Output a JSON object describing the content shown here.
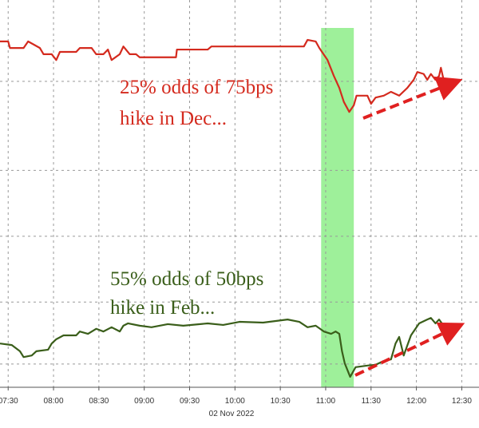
{
  "chart_data": {
    "type": "line",
    "annotations": [
      "25% odds of 75bps",
      "hike in Dec...",
      "55% odds of 50bps",
      "hike in Feb..."
    ],
    "x_label": "02 Nov 2022",
    "xlim": [
      7.41,
      12.69
    ],
    "ylim": [
      0,
      100
    ],
    "xticks": [
      {
        "value": 7.5,
        "label": "07:30"
      },
      {
        "value": 8,
        "label": "08:00"
      },
      {
        "value": 8.5,
        "label": "08:30"
      },
      {
        "value": 9,
        "label": "09:00"
      },
      {
        "value": 9.5,
        "label": "09:30"
      },
      {
        "value": 10,
        "label": "10:00"
      },
      {
        "value": 10.5,
        "label": "10:30"
      },
      {
        "value": 11,
        "label": "11:00"
      },
      {
        "value": 11.5,
        "label": "11:30"
      },
      {
        "value": 12,
        "label": "12:00"
      },
      {
        "value": 12.5,
        "label": "12:30"
      }
    ],
    "ygrid": [
      79,
      56,
      39,
      22,
      6
    ],
    "highlight": [
      10.95,
      11.31
    ],
    "highlight_color": "#9ef09a",
    "series": [
      {
        "color": "#d42a1e",
        "x": [
          7.41,
          7.5,
          7.52,
          7.67,
          7.72,
          7.85,
          7.89,
          7.98,
          8.03,
          8.07,
          8.25,
          8.29,
          8.42,
          8.47,
          8.55,
          8.6,
          8.64,
          8.73,
          8.77,
          8.84,
          8.91,
          8.95,
          9.35,
          9.36,
          9.7,
          9.74,
          10.76,
          10.8,
          10.89,
          10.93,
          11.02,
          11.09,
          11.15,
          11.2,
          11.26,
          11.31,
          11.34,
          11.46,
          11.5,
          11.55,
          11.64,
          11.72,
          11.81,
          11.9,
          11.97,
          12.01,
          12.08,
          12.12,
          12.16,
          12.21,
          12.25,
          12.27,
          12.3
        ],
        "values": [
          89.3,
          89.3,
          87.6,
          87.6,
          89.3,
          87.6,
          86.0,
          86.0,
          84.5,
          86.6,
          86.6,
          87.6,
          87.6,
          86.0,
          86.0,
          87.2,
          84.5,
          86.0,
          88.0,
          86.0,
          86.0,
          85.2,
          85.2,
          87.2,
          87.2,
          88.0,
          88.0,
          89.7,
          89.3,
          87.6,
          84.5,
          80.4,
          77.3,
          73.7,
          71.1,
          72.8,
          75.3,
          75.3,
          73.2,
          74.8,
          75.3,
          76.3,
          75.3,
          77.3,
          79.4,
          81.4,
          80.9,
          79.4,
          80.9,
          79.4,
          80.4,
          82.5,
          79.4
        ]
      },
      {
        "color": "#3a5e1a",
        "x": [
          7.41,
          7.54,
          7.63,
          7.67,
          7.76,
          7.81,
          7.94,
          7.98,
          8.03,
          8.11,
          8.25,
          8.29,
          8.38,
          8.47,
          8.55,
          8.64,
          8.73,
          8.77,
          8.82,
          8.95,
          9.08,
          9.26,
          9.43,
          9.7,
          9.87,
          10.05,
          10.31,
          10.58,
          10.71,
          10.8,
          10.89,
          10.98,
          11.06,
          11.11,
          11.15,
          11.18,
          11.21,
          11.27,
          11.33,
          11.46,
          11.55,
          11.64,
          11.72,
          11.77,
          11.81,
          11.86,
          11.94,
          12.03,
          12.12,
          12.16,
          12.21,
          12.25,
          12.3
        ],
        "values": [
          11.3,
          10.9,
          9.3,
          7.8,
          8.2,
          9.3,
          9.7,
          11.3,
          12.4,
          13.4,
          13.4,
          14.4,
          13.8,
          15.1,
          14.4,
          15.5,
          14.4,
          15.9,
          16.5,
          15.9,
          15.5,
          16.3,
          15.9,
          16.5,
          16.1,
          16.9,
          16.7,
          17.5,
          16.9,
          15.5,
          15.9,
          14.4,
          13.8,
          14.4,
          13.8,
          9.3,
          6.2,
          2.7,
          5.2,
          5.6,
          5.8,
          6.8,
          7.2,
          11.3,
          13.0,
          8.2,
          13.4,
          16.5,
          17.5,
          17.9,
          16.5,
          17.5,
          15.9
        ]
      }
    ]
  }
}
